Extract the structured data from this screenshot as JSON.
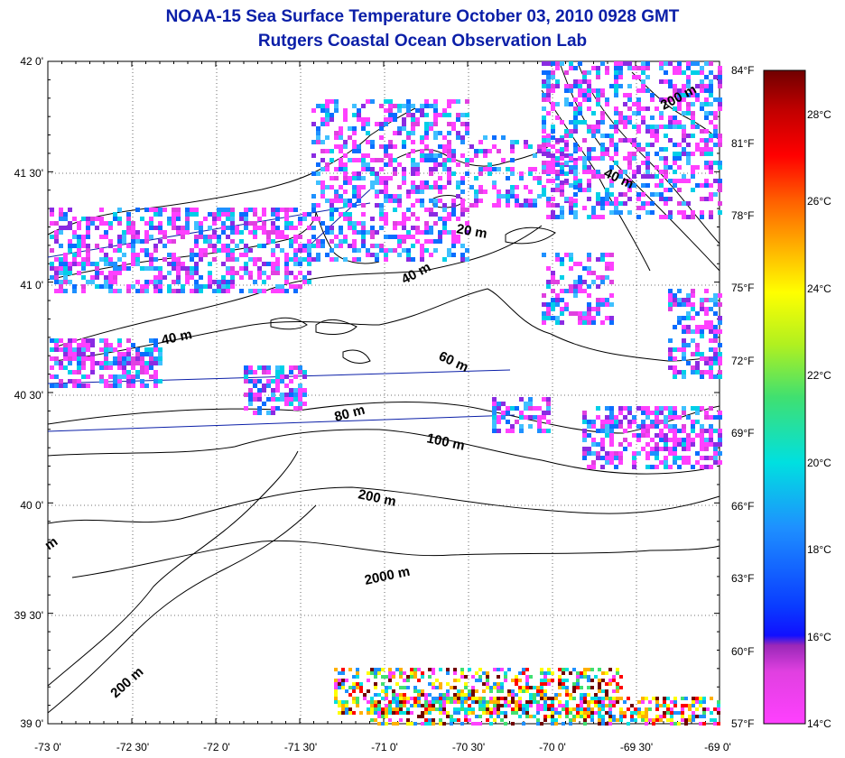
{
  "header": {
    "title": "NOAA-15 Sea Surface Temperature October 03, 2010 0928 GMT",
    "subtitle": "Rutgers Coastal Ocean Observation Lab"
  },
  "map": {
    "lat_labels": [
      "42 0'",
      "41 30'",
      "41 0'",
      "40 30'",
      "40 0'",
      "39 30'",
      "39 0'"
    ],
    "lon_labels": [
      "-73 0'",
      "-72 30'",
      "-72 0'",
      "-71 30'",
      "-71 0'",
      "-70 30'",
      "-70 0'",
      "-69 30'",
      "-69 0'"
    ],
    "depth_labels": [
      "200 m",
      "40 m",
      "20 m",
      "40 m",
      "40 m",
      "60 m",
      "80 m",
      "100 m",
      "200 m",
      "2000 m",
      "200 m",
      "m"
    ]
  },
  "colorbar": {
    "f_labels": [
      "84°F",
      "81°F",
      "78°F",
      "75°F",
      "72°F",
      "69°F",
      "66°F",
      "63°F",
      "60°F",
      "57°F"
    ],
    "c_labels": [
      "28°C",
      "26°C",
      "24°C",
      "22°C",
      "20°C",
      "18°C",
      "16°C",
      "14°C"
    ],
    "stops": [
      "#ff40ff",
      "#e040e0",
      "#9a28b8",
      "#1010ff",
      "#0a3cff",
      "#1e90ff",
      "#00e0e0",
      "#40e070",
      "#b0f020",
      "#ffff00",
      "#ffb000",
      "#ff6000",
      "#ff0000",
      "#c00000",
      "#700000"
    ]
  }
}
